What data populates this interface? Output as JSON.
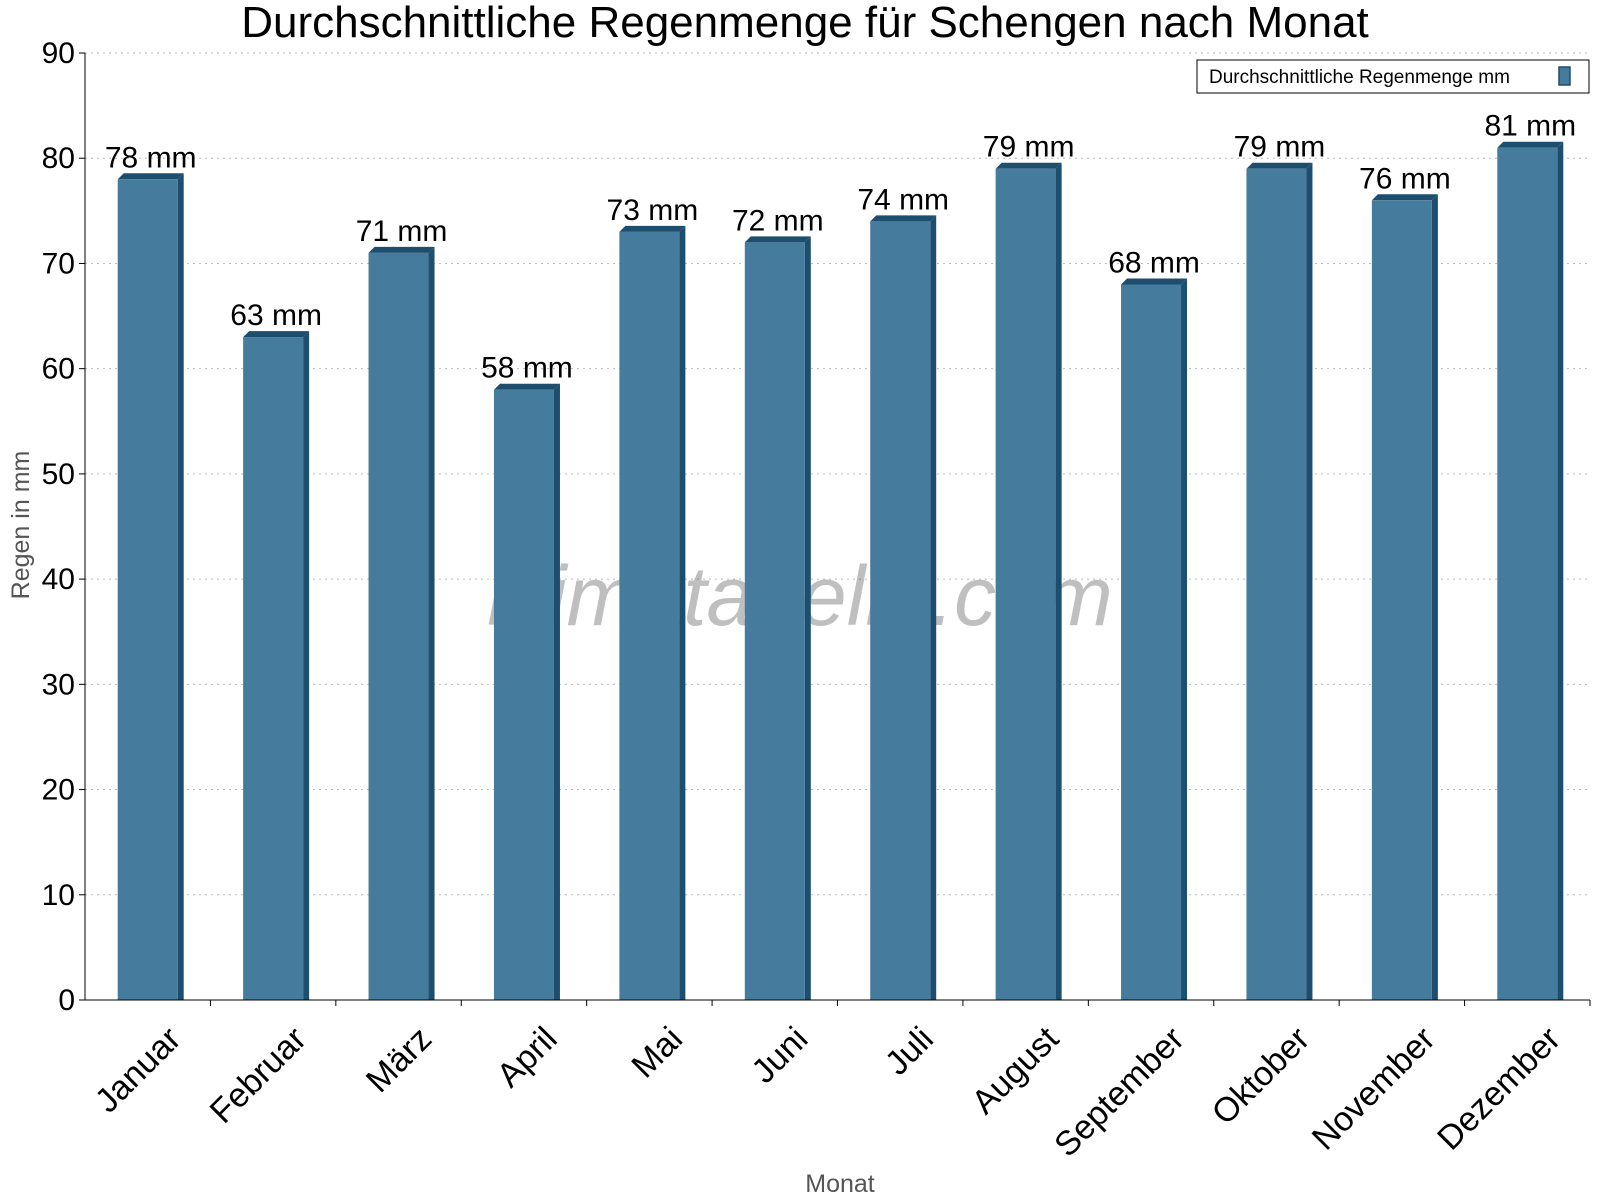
{
  "chart_data": {
    "type": "bar",
    "title": "Durchschnittliche Regenmenge für Schengen nach Monat",
    "xlabel": "Monat",
    "ylabel": "Regen in mm",
    "ylim": [
      0,
      90
    ],
    "yticks": [
      0,
      10,
      20,
      30,
      40,
      50,
      60,
      70,
      80,
      90
    ],
    "grid": true,
    "legend_position": "top-right",
    "categories": [
      "Januar",
      "Februar",
      "März",
      "April",
      "Mai",
      "Juni",
      "Juli",
      "August",
      "September",
      "Oktober",
      "November",
      "Dezember"
    ],
    "series": [
      {
        "name": "Durchschnittliche Regenmenge mm",
        "values": [
          78,
          63,
          71,
          58,
          73,
          72,
          74,
          79,
          68,
          79,
          76,
          81
        ],
        "labels": [
          "78 mm",
          "63 mm",
          "71 mm",
          "58 mm",
          "73 mm",
          "72 mm",
          "74 mm",
          "79 mm",
          "68 mm",
          "79 mm",
          "76 mm",
          "81 mm"
        ],
        "color": "#457b9d",
        "shade_color": "#1d4e6e"
      }
    ]
  },
  "watermark": "klimatabelle.com"
}
